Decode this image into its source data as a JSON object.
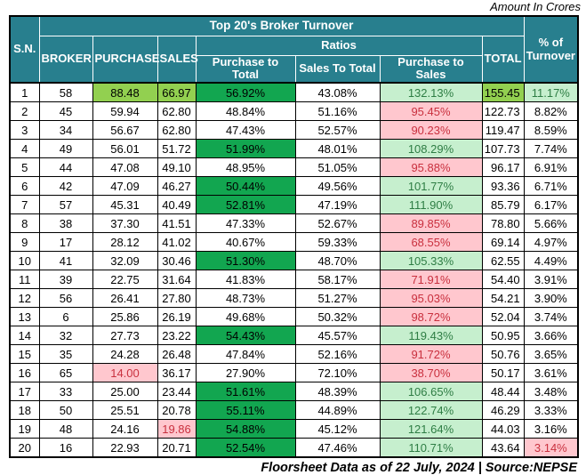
{
  "note": "Amount In Crores",
  "footer": "Floorsheet Data as of 22 July, 2024 | Source:NEPSE",
  "colors": {
    "header_teal": "#287F8E",
    "highlight_lime": "#92D050",
    "highlight_green": "#12A650",
    "good_bg": "#C6EFCE",
    "good_text": "#2E7D44",
    "bad_bg": "#FFC7CE",
    "bad_text": "#C9303E"
  },
  "chart_data": {
    "type": "table",
    "title": "Top 20's Broker Turnover",
    "headers": {
      "sn": "S.N.",
      "broker": "BROKER",
      "purchase": "PURCHASE",
      "sales": "SALES",
      "ratios": "Ratios",
      "purchase_to_total": "Purchase to Total",
      "sales_to_total": "Sales To Total",
      "purchase_to_sales": "Purchase to Sales",
      "total": "TOTAL",
      "pct_turnover": "% of Turnover"
    },
    "columns": [
      {
        "key": "sn",
        "name": "sn-cell"
      },
      {
        "key": "broker",
        "name": "broker-cell"
      },
      {
        "key": "purchase",
        "name": "purchase-cell"
      },
      {
        "key": "sales",
        "name": "sales-cell"
      },
      {
        "key": "p2t",
        "name": "purchase-to-total-cell"
      },
      {
        "key": "s2t",
        "name": "sales-to-total-cell"
      },
      {
        "key": "p2s",
        "name": "purchase-to-sales-cell"
      },
      {
        "key": "total",
        "name": "total-cell",
        "align": "right"
      },
      {
        "key": "pct",
        "name": "percent-of-turnover-cell"
      }
    ],
    "rows": [
      {
        "sn": "1",
        "broker": "58",
        "purchase": "88.48",
        "sales": "66.97",
        "p2t": "56.92%",
        "s2t": "43.08%",
        "p2s": "132.13%",
        "total": "155.45",
        "pct": "11.17%",
        "styles": {
          "purchase": "lime",
          "sales": "lime",
          "p2t": "green",
          "p2s": "good",
          "total": "lime",
          "pct": "good"
        }
      },
      {
        "sn": "2",
        "broker": "45",
        "purchase": "59.94",
        "sales": "62.80",
        "p2t": "48.84%",
        "s2t": "51.16%",
        "p2s": "95.45%",
        "total": "122.73",
        "pct": "8.82%",
        "styles": {
          "p2s": "bad"
        }
      },
      {
        "sn": "3",
        "broker": "34",
        "purchase": "56.67",
        "sales": "62.80",
        "p2t": "47.43%",
        "s2t": "52.57%",
        "p2s": "90.23%",
        "total": "119.47",
        "pct": "8.59%",
        "styles": {
          "p2s": "bad"
        }
      },
      {
        "sn": "4",
        "broker": "49",
        "purchase": "56.01",
        "sales": "51.72",
        "p2t": "51.99%",
        "s2t": "48.01%",
        "p2s": "108.29%",
        "total": "107.73",
        "pct": "7.74%",
        "styles": {
          "p2t": "green",
          "p2s": "good"
        }
      },
      {
        "sn": "5",
        "broker": "44",
        "purchase": "47.08",
        "sales": "49.10",
        "p2t": "48.95%",
        "s2t": "51.05%",
        "p2s": "95.88%",
        "total": "96.17",
        "pct": "6.91%",
        "styles": {
          "p2s": "bad"
        }
      },
      {
        "sn": "6",
        "broker": "42",
        "purchase": "47.09",
        "sales": "46.27",
        "p2t": "50.44%",
        "s2t": "49.56%",
        "p2s": "101.77%",
        "total": "93.36",
        "pct": "6.71%",
        "styles": {
          "p2t": "green",
          "p2s": "good"
        }
      },
      {
        "sn": "7",
        "broker": "57",
        "purchase": "45.31",
        "sales": "40.49",
        "p2t": "52.81%",
        "s2t": "47.19%",
        "p2s": "111.90%",
        "total": "85.79",
        "pct": "6.17%",
        "styles": {
          "p2t": "green",
          "p2s": "good"
        }
      },
      {
        "sn": "8",
        "broker": "38",
        "purchase": "37.30",
        "sales": "41.51",
        "p2t": "47.33%",
        "s2t": "52.67%",
        "p2s": "89.85%",
        "total": "78.80",
        "pct": "5.66%",
        "styles": {
          "p2s": "bad"
        }
      },
      {
        "sn": "9",
        "broker": "17",
        "purchase": "28.12",
        "sales": "41.02",
        "p2t": "40.67%",
        "s2t": "59.33%",
        "p2s": "68.55%",
        "total": "69.14",
        "pct": "4.97%",
        "styles": {
          "p2s": "bad"
        }
      },
      {
        "sn": "10",
        "broker": "41",
        "purchase": "32.09",
        "sales": "30.46",
        "p2t": "51.30%",
        "s2t": "48.70%",
        "p2s": "105.33%",
        "total": "62.55",
        "pct": "4.49%",
        "styles": {
          "p2t": "green",
          "p2s": "good"
        }
      },
      {
        "sn": "11",
        "broker": "39",
        "purchase": "22.75",
        "sales": "31.64",
        "p2t": "41.83%",
        "s2t": "58.17%",
        "p2s": "71.91%",
        "total": "54.40",
        "pct": "3.91%",
        "styles": {
          "p2s": "bad"
        }
      },
      {
        "sn": "12",
        "broker": "56",
        "purchase": "26.41",
        "sales": "27.80",
        "p2t": "48.73%",
        "s2t": "51.27%",
        "p2s": "95.03%",
        "total": "54.21",
        "pct": "3.90%",
        "styles": {
          "p2s": "bad"
        }
      },
      {
        "sn": "13",
        "broker": "6",
        "purchase": "25.86",
        "sales": "26.19",
        "p2t": "49.68%",
        "s2t": "50.32%",
        "p2s": "98.72%",
        "total": "52.04",
        "pct": "3.74%",
        "styles": {
          "p2s": "bad"
        }
      },
      {
        "sn": "14",
        "broker": "32",
        "purchase": "27.73",
        "sales": "23.22",
        "p2t": "54.43%",
        "s2t": "45.57%",
        "p2s": "119.43%",
        "total": "50.95",
        "pct": "3.66%",
        "styles": {
          "p2t": "green",
          "p2s": "good"
        }
      },
      {
        "sn": "15",
        "broker": "35",
        "purchase": "24.28",
        "sales": "26.48",
        "p2t": "47.84%",
        "s2t": "52.16%",
        "p2s": "91.72%",
        "total": "50.76",
        "pct": "3.65%",
        "styles": {
          "p2s": "bad"
        }
      },
      {
        "sn": "16",
        "broker": "65",
        "purchase": "14.00",
        "sales": "36.17",
        "p2t": "27.90%",
        "s2t": "72.10%",
        "p2s": "38.70%",
        "total": "50.17",
        "pct": "3.61%",
        "styles": {
          "purchase": "bad",
          "p2s": "bad"
        }
      },
      {
        "sn": "17",
        "broker": "33",
        "purchase": "25.00",
        "sales": "23.44",
        "p2t": "51.61%",
        "s2t": "48.39%",
        "p2s": "106.65%",
        "total": "48.44",
        "pct": "3.48%",
        "styles": {
          "p2t": "green",
          "p2s": "good"
        }
      },
      {
        "sn": "18",
        "broker": "50",
        "purchase": "25.51",
        "sales": "20.78",
        "p2t": "55.11%",
        "s2t": "44.89%",
        "p2s": "122.74%",
        "total": "46.29",
        "pct": "3.33%",
        "styles": {
          "p2t": "green",
          "p2s": "good"
        }
      },
      {
        "sn": "19",
        "broker": "48",
        "purchase": "24.16",
        "sales": "19.86",
        "p2t": "54.88%",
        "s2t": "45.12%",
        "p2s": "121.64%",
        "total": "44.03",
        "pct": "3.16%",
        "styles": {
          "sales": "bad",
          "p2t": "green",
          "p2s": "good"
        }
      },
      {
        "sn": "20",
        "broker": "16",
        "purchase": "22.93",
        "sales": "20.71",
        "p2t": "52.54%",
        "s2t": "47.46%",
        "p2s": "110.71%",
        "total": "43.64",
        "pct": "3.14%",
        "styles": {
          "p2t": "green",
          "p2s": "good",
          "pct": "bad"
        }
      }
    ]
  }
}
